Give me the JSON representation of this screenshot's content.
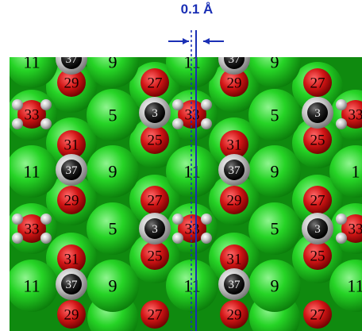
{
  "scale": {
    "label": "0.1 Å",
    "color": "#1a2fb5"
  },
  "colors": {
    "big": "#22cc22",
    "mid": "#cc1111",
    "cap": "#bfbfbf",
    "core": "#111111"
  },
  "atoms": {
    "big_rows": [
      {
        "labels": [
          "11",
          "9",
          "11",
          "9"
        ]
      },
      {
        "labels": [
          "5",
          "5"
        ]
      },
      {
        "labels": [
          "11",
          "9",
          "11",
          "9",
          "1"
        ]
      },
      {
        "labels": [
          "5",
          "5"
        ]
      },
      {
        "labels": [
          "11",
          "9",
          "11",
          "9",
          "11"
        ]
      }
    ],
    "red_upper": [
      "29",
      "27",
      "29",
      "27"
    ],
    "red_33": [
      "33",
      "33",
      "33"
    ],
    "red_25": [
      "25",
      "25"
    ],
    "red_31": [
      "31",
      "31"
    ],
    "dark_label": "37",
    "dark_label_partial": "3"
  }
}
